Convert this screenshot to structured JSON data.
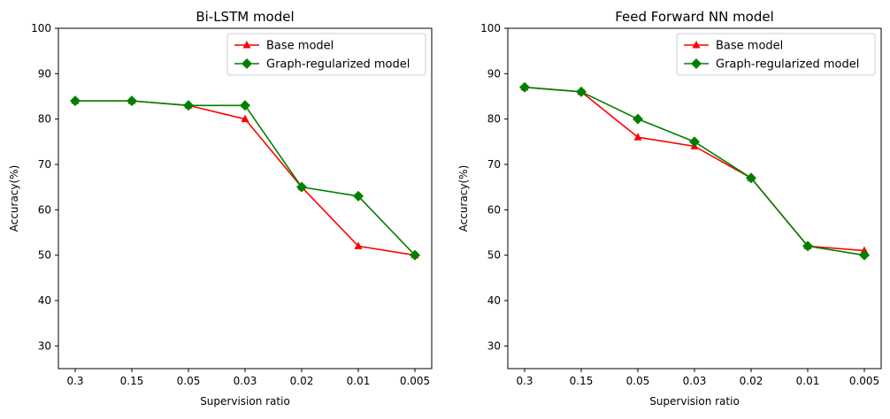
{
  "chart_data": [
    {
      "type": "line",
      "title": "Bi-LSTM model",
      "xlabel": "Supervision ratio",
      "ylabel": "Accuracy(%)",
      "categories": [
        "0.3",
        "0.15",
        "0.05",
        "0.03",
        "0.02",
        "0.01",
        "0.005"
      ],
      "ylim": [
        25,
        100
      ],
      "yticks": [
        30,
        40,
        50,
        60,
        70,
        80,
        90,
        100
      ],
      "legend": "top-right",
      "grid": false,
      "series": [
        {
          "name": "Base model",
          "color": "#ff0000",
          "marker": "triangle",
          "values": [
            84,
            84,
            83,
            80,
            65,
            52,
            50
          ]
        },
        {
          "name": "Graph-regularized model",
          "color": "#008000",
          "marker": "diamond",
          "values": [
            84,
            84,
            83,
            83,
            65,
            63,
            50
          ]
        }
      ]
    },
    {
      "type": "line",
      "title": "Feed Forward NN model",
      "xlabel": "Supervision ratio",
      "ylabel": "Accuracy(%)",
      "categories": [
        "0.3",
        "0.15",
        "0.05",
        "0.03",
        "0.02",
        "0.01",
        "0.005"
      ],
      "ylim": [
        25,
        100
      ],
      "yticks": [
        30,
        40,
        50,
        60,
        70,
        80,
        90,
        100
      ],
      "legend": "top-right",
      "grid": false,
      "series": [
        {
          "name": "Base model",
          "color": "#ff0000",
          "marker": "triangle",
          "values": [
            87,
            86,
            76,
            74,
            67,
            52,
            51
          ]
        },
        {
          "name": "Graph-regularized model",
          "color": "#008000",
          "marker": "diamond",
          "values": [
            87,
            86,
            80,
            75,
            67,
            52,
            50
          ]
        }
      ]
    }
  ]
}
